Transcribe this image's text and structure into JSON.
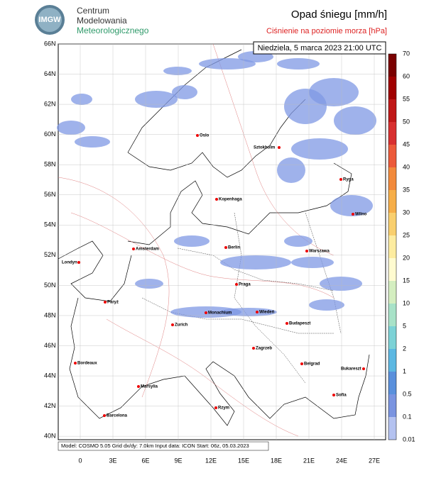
{
  "logo": {
    "badge": "IMGW",
    "lines": [
      "Centrum",
      "Modelowania",
      "Meteorologicznego"
    ]
  },
  "title": "Opad śniegu [mm/h]",
  "subtitle": "Ciśnienie na poziomie morza [hPa]",
  "date": "Niedziela, 5 marca 2023 21:00 UTC",
  "lat_labels": [
    "66N",
    "64N",
    "62N",
    "60N",
    "58N",
    "56N",
    "54N",
    "52N",
    "50N",
    "48N",
    "46N",
    "44N",
    "42N",
    "40N"
  ],
  "lon_labels": [
    "0",
    "3E",
    "6E",
    "9E",
    "12E",
    "15E",
    "18E",
    "21E",
    "24E",
    "27E"
  ],
  "cities": [
    "Oslo",
    "Sztokholm",
    "Ryga",
    "Kopenhaga",
    "Wilno",
    "Amsterdam",
    "Berlin",
    "Warszawa",
    "Londyn",
    "Praga",
    "Paryż",
    "Monachium",
    "Wiedeń",
    "Zurich",
    "Budapeszt",
    "Bordeaux",
    "Zagrzeb",
    "Belgrad",
    "Bukareszt",
    "Marsylia",
    "Sofia",
    "Rzym",
    "Barcelona"
  ],
  "colorbar": {
    "labels": [
      70,
      60,
      55,
      50,
      45,
      40,
      35,
      30,
      25,
      20,
      15,
      10,
      5,
      2,
      1,
      0.5,
      0.1,
      0.01
    ],
    "colors": [
      "#7a0000",
      "#a00000",
      "#c01818",
      "#d83030",
      "#ec5a3a",
      "#f28a3c",
      "#f6ae48",
      "#f9cf6e",
      "#fdeca0",
      "#fffbd0",
      "#d4eec0",
      "#a8e2c8",
      "#7cd2d6",
      "#5cb8e2",
      "#5a90dc",
      "#7a94e0",
      "#b4c2f0"
    ]
  },
  "footer": "Model: COSMO 5.05  Grid dx/dy: 7.0km  Input data: ICON  Start: 06z, 05.03.2023"
}
